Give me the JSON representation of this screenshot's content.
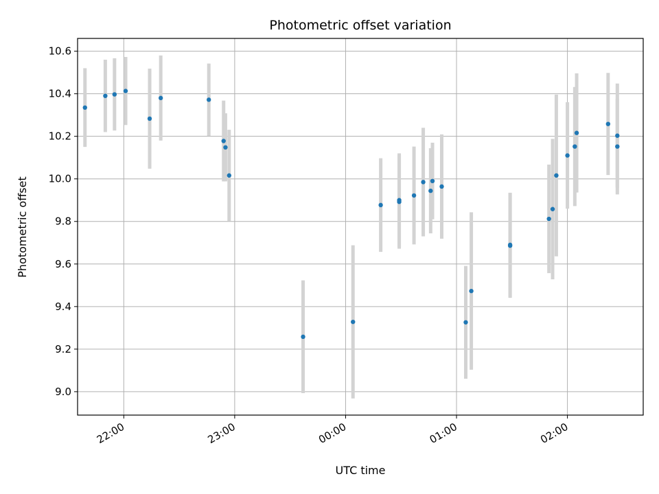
{
  "chart_data": {
    "type": "scatter",
    "title": "Photometric offset variation",
    "xlabel": "UTC time",
    "ylabel": "Photometric offset",
    "ylim": [
      8.89,
      10.66
    ],
    "xlim": [
      "21:35",
      "02:41"
    ],
    "x_ticks": [
      "22:00",
      "23:00",
      "00:00",
      "01:00",
      "02:00"
    ],
    "y_ticks": [
      "9.0",
      "9.2",
      "9.4",
      "9.6",
      "9.8",
      "10.0",
      "10.2",
      "10.4",
      "10.6"
    ],
    "grid": true,
    "colors": {
      "marker": "#1f77b4",
      "errorbar": "#d3d3d3",
      "grid": "#b0b0b0"
    },
    "series": [
      {
        "points": [
          {
            "t": "21:39",
            "y": 10.335,
            "err": 0.185
          },
          {
            "t": "21:50",
            "y": 10.39,
            "err": 0.17
          },
          {
            "t": "21:55",
            "y": 10.397,
            "err": 0.17
          },
          {
            "t": "22:01",
            "y": 10.413,
            "err": 0.16
          },
          {
            "t": "22:14",
            "y": 10.283,
            "err": 0.235
          },
          {
            "t": "22:20",
            "y": 10.38,
            "err": 0.2
          },
          {
            "t": "22:46",
            "y": 10.372,
            "err": 0.17
          },
          {
            "t": "22:54",
            "y": 10.178,
            "err": 0.19
          },
          {
            "t": "22:55",
            "y": 10.148,
            "err": 0.16
          },
          {
            "t": "22:57",
            "y": 10.016,
            "err": 0.215
          },
          {
            "t": "23:37",
            "y": 9.258,
            "err": 0.265
          },
          {
            "t": "00:04",
            "y": 9.328,
            "err": 0.36
          },
          {
            "t": "00:19",
            "y": 9.877,
            "err": 0.22
          },
          {
            "t": "00:29",
            "y": 9.892,
            "err": 0.22
          },
          {
            "t": "00:29",
            "y": 9.9,
            "err": 0.22
          },
          {
            "t": "00:37",
            "y": 9.922,
            "err": 0.23
          },
          {
            "t": "00:42",
            "y": 9.985,
            "err": 0.255
          },
          {
            "t": "00:46",
            "y": 9.944,
            "err": 0.2
          },
          {
            "t": "00:47",
            "y": 9.99,
            "err": 0.18
          },
          {
            "t": "00:52",
            "y": 9.964,
            "err": 0.245
          },
          {
            "t": "01:05",
            "y": 9.326,
            "err": 0.265
          },
          {
            "t": "01:08",
            "y": 9.473,
            "err": 0.37
          },
          {
            "t": "01:29",
            "y": 9.686,
            "err": 0.245
          },
          {
            "t": "01:29",
            "y": 9.69,
            "err": 0.245
          },
          {
            "t": "01:50",
            "y": 9.812,
            "err": 0.255
          },
          {
            "t": "01:52",
            "y": 9.858,
            "err": 0.33
          },
          {
            "t": "01:54",
            "y": 10.016,
            "err": 0.38
          },
          {
            "t": "02:00",
            "y": 10.11,
            "err": 0.25
          },
          {
            "t": "02:04",
            "y": 10.152,
            "err": 0.28
          },
          {
            "t": "02:05",
            "y": 10.216,
            "err": 0.28
          },
          {
            "t": "02:22",
            "y": 10.258,
            "err": 0.24
          },
          {
            "t": "02:27",
            "y": 10.152,
            "err": 0.225
          },
          {
            "t": "02:27",
            "y": 10.203,
            "err": 0.245
          }
        ]
      }
    ]
  }
}
